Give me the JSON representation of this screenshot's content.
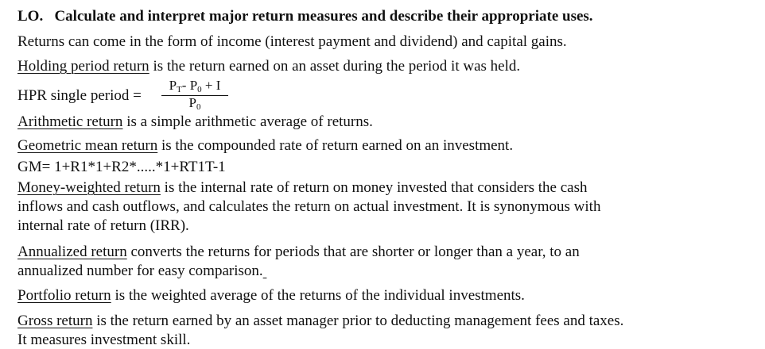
{
  "header": {
    "lo": "LO.",
    "title": "Calculate and interpret major return measures and describe their appropriate uses."
  },
  "intro": "Returns can come in the form of income (interest payment and dividend) and capital gains.",
  "hpr": {
    "term": "Holding period return",
    "rest": " is the return earned on an asset during the period it was held.",
    "formula_label": "HPR single period =",
    "numerator_p": "P",
    "numerator_sub_t": "T",
    "numerator_mid": "- P",
    "numerator_sub_0": "0",
    "numerator_end": "+ I",
    "denominator_p": "P",
    "denominator_sub_0": "0"
  },
  "arith": {
    "term": "Arithmetic return",
    "rest": " is a simple arithmetic average of returns."
  },
  "geo": {
    "term": "Geometric mean return",
    "rest": " is the compounded rate of return earned on an investment.",
    "formula": "GM= 1+R1*1+R2*.....*1+RT1T-1"
  },
  "mwr": {
    "term": "Money-weighted return",
    "rest1": " is the internal rate of return on money invested that considers the cash",
    "line2": "inflows and cash outflows, and calculates the return on actual investment. It is synonymous with",
    "line3": "internal rate of return (IRR)."
  },
  "annual": {
    "term": "Annualized return",
    "rest1": " converts the returns for periods that are shorter or longer than a year, to an",
    "line2": "annualized number for easy comparison."
  },
  "portfolio": {
    "term": "Portfolio return",
    "rest": " is the weighted average of the returns of the individual investments."
  },
  "gross": {
    "term": "Gross return",
    "rest1": " is the return earned by an asset manager prior to deducting management fees and taxes.",
    "line2": "It measures investment skill."
  }
}
